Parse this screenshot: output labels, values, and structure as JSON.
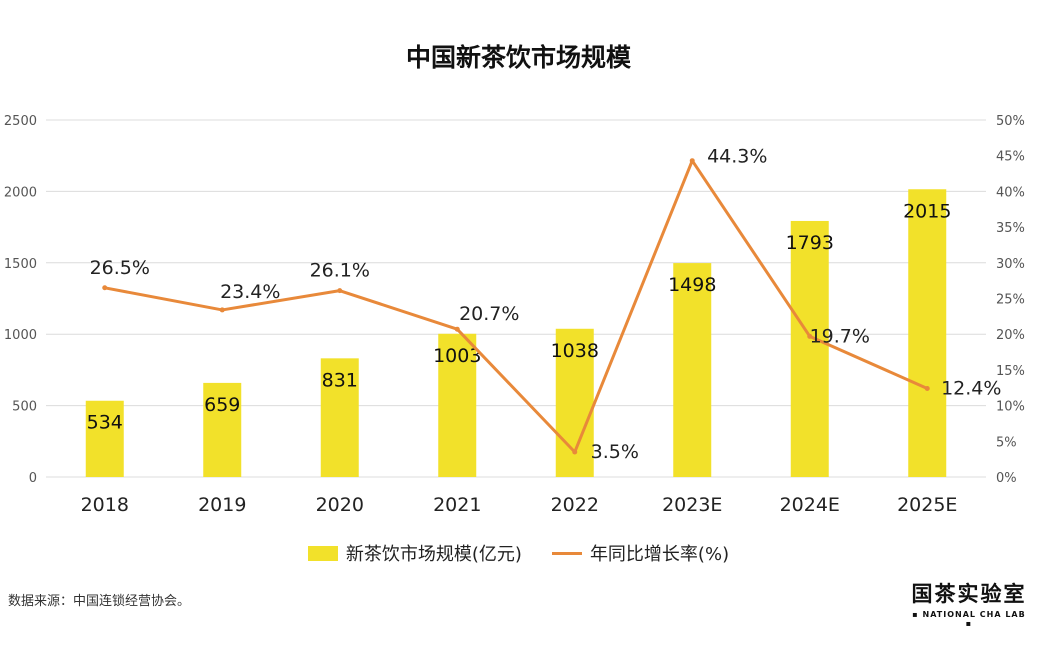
{
  "chart_data": {
    "type": "bar",
    "title": "中国新茶饮市场规模",
    "categories": [
      "2018",
      "2019",
      "2020",
      "2021",
      "2022",
      "2023E",
      "2024E",
      "2025E"
    ],
    "series": [
      {
        "name": "新茶饮市场规模(亿元)",
        "type": "bar",
        "axis": "left",
        "color": "#F2E12A",
        "values": [
          534,
          659,
          831,
          1003,
          1038,
          1498,
          1793,
          2015
        ],
        "labels": [
          "534",
          "659",
          "831",
          "1003",
          "1038",
          "1498",
          "1793",
          "2015"
        ]
      },
      {
        "name": "年同比增长率(%)",
        "type": "line",
        "axis": "right",
        "color": "#E8893A",
        "values": [
          26.5,
          23.4,
          26.1,
          20.7,
          3.5,
          44.3,
          19.7,
          12.4
        ],
        "labels": [
          "26.5%",
          "23.4%",
          "26.1%",
          "20.7%",
          "3.5%",
          "44.3%",
          "19.7%",
          "12.4%"
        ]
      }
    ],
    "y_left": {
      "min": 0,
      "max": 2500,
      "ticks": [
        "0",
        "500",
        "1000",
        "1500",
        "2000",
        "2500"
      ]
    },
    "y_right": {
      "min": 0,
      "max": 50,
      "ticks": [
        "0%",
        "5%",
        "10%",
        "15%",
        "20%",
        "25%",
        "30%",
        "35%",
        "40%",
        "45%",
        "50%"
      ]
    },
    "grid": true,
    "legend_position": "bottom"
  },
  "footer": {
    "source": "数据来源：中国连锁经营协会。",
    "logo_main": "国茶实验室",
    "logo_sub": "▪ NATIONAL CHA LAB ▪"
  }
}
